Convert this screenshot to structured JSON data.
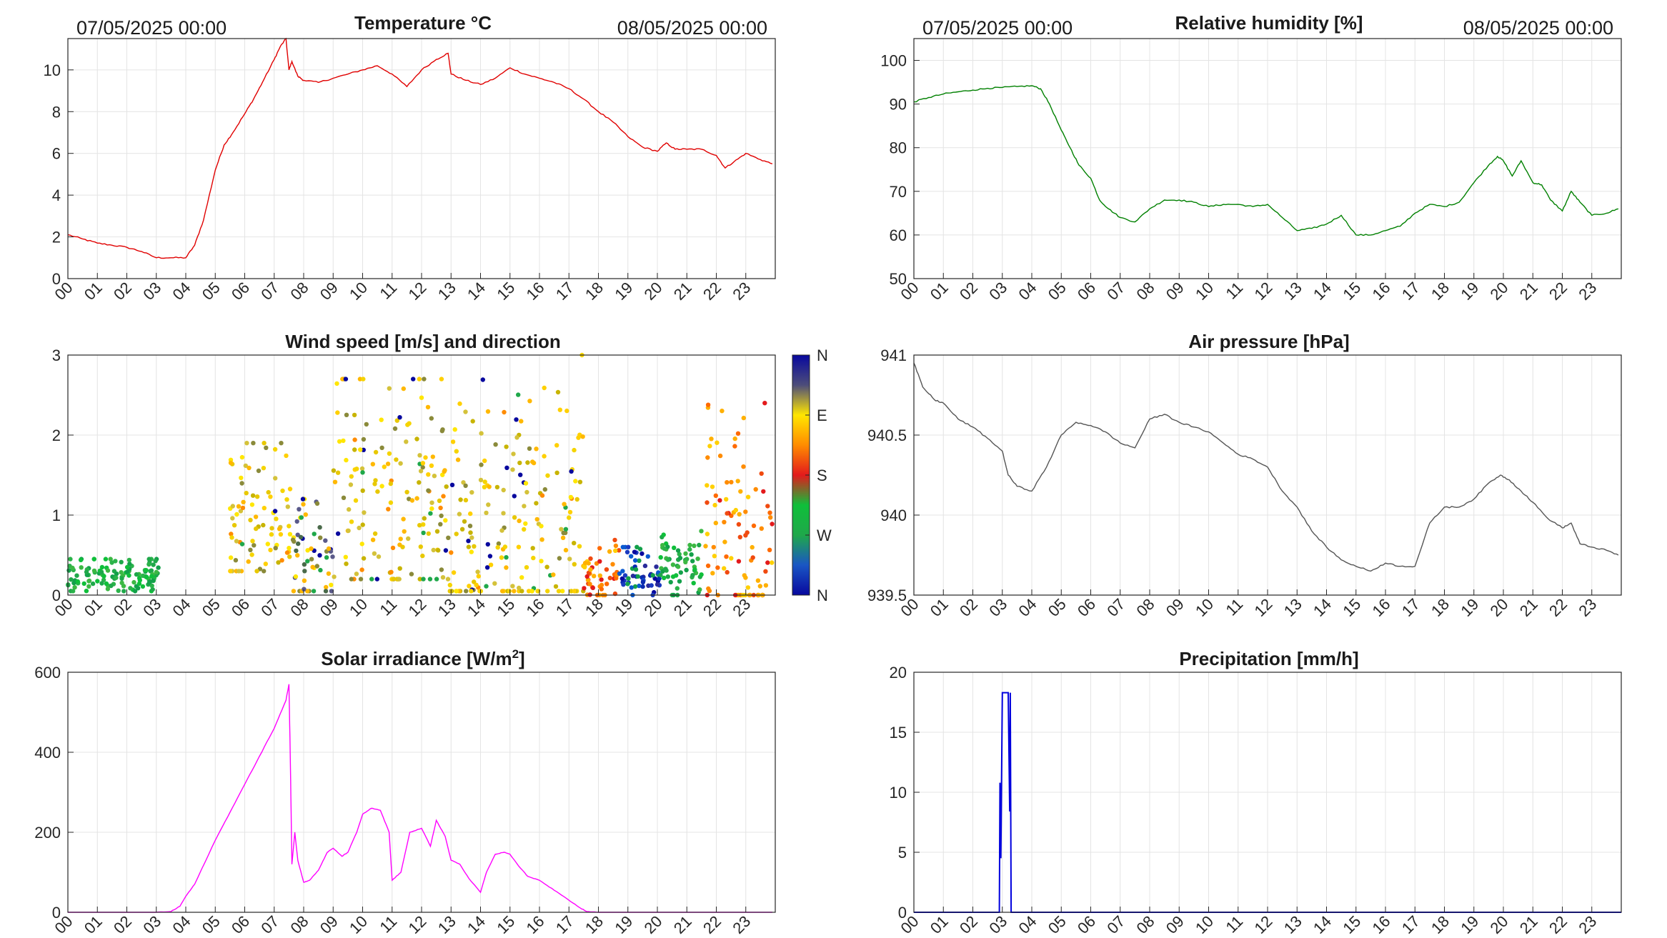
{
  "panels": [
    {
      "id": "temperature",
      "title": "Temperature °C",
      "left_label": "07/05/2025 00:00",
      "right_label": "08/05/2025 00:00"
    },
    {
      "id": "humidity",
      "title": "Relative humidity [%]",
      "left_label": "07/05/2025 00:00",
      "right_label": "08/05/2025 00:00"
    },
    {
      "id": "wind",
      "title": "Wind speed [m/s] and direction"
    },
    {
      "id": "pressure",
      "title": "Air pressure [hPa]"
    },
    {
      "id": "solar",
      "title": "Solar irradiance [W/m",
      "title_sup": "2",
      "title_end": "]"
    },
    {
      "id": "precip",
      "title": "Precipitation [mm/h]"
    }
  ],
  "hour_labels": [
    "00",
    "01",
    "02",
    "03",
    "04",
    "05",
    "06",
    "07",
    "08",
    "09",
    "10",
    "11",
    "12",
    "13",
    "14",
    "15",
    "16",
    "17",
    "18",
    "19",
    "20",
    "21",
    "22",
    "23"
  ],
  "colorbar": {
    "labels": [
      "N",
      "W",
      "S",
      "E",
      "N"
    ],
    "colors": [
      "#08089e",
      "#1a56c4",
      "#1fa84a",
      "#0fbf3a",
      "#e31a1c",
      "#ff8c00",
      "#ffe600",
      "#4d4d7a",
      "#08089e"
    ]
  },
  "chart_data": [
    {
      "id": "temperature",
      "type": "line",
      "title": "Temperature °C",
      "color": "#e00000",
      "xlim": [
        0,
        24
      ],
      "ylim": [
        0,
        11.5
      ],
      "yticks": [
        0,
        2,
        4,
        6,
        8,
        10
      ],
      "grid": true,
      "x": [
        0,
        0.5,
        1,
        1.5,
        2,
        2.5,
        3,
        3.5,
        4,
        4.3,
        4.6,
        5,
        5.3,
        5.6,
        6,
        6.3,
        6.6,
        7,
        7.2,
        7.4,
        7.5,
        7.6,
        7.8,
        8,
        8.5,
        9,
        9.5,
        10,
        10.5,
        11,
        11.5,
        12,
        12.5,
        12.9,
        13,
        13.5,
        14,
        14.5,
        15,
        15.5,
        16,
        16.5,
        17,
        17.5,
        18,
        18.5,
        19,
        19.5,
        20,
        20.3,
        20.6,
        21,
        21.5,
        22,
        22.3,
        22.6,
        23,
        23.5,
        23.9
      ],
      "y": [
        2.1,
        1.9,
        1.7,
        1.6,
        1.5,
        1.3,
        1.0,
        1.0,
        1.0,
        1.6,
        2.8,
        5.2,
        6.4,
        7.0,
        7.9,
        8.6,
        9.4,
        10.5,
        11.1,
        11.5,
        10.0,
        10.4,
        9.7,
        9.5,
        9.4,
        9.6,
        9.8,
        10.0,
        10.2,
        9.8,
        9.2,
        10.0,
        10.5,
        10.8,
        9.8,
        9.5,
        9.3,
        9.6,
        10.1,
        9.8,
        9.6,
        9.4,
        9.1,
        8.6,
        8.0,
        7.5,
        6.8,
        6.3,
        6.1,
        6.5,
        6.2,
        6.2,
        6.2,
        5.9,
        5.3,
        5.6,
        6.0,
        5.7,
        5.5
      ]
    },
    {
      "id": "humidity",
      "type": "line",
      "title": "Relative humidity [%]",
      "color": "#008000",
      "xlim": [
        0,
        24
      ],
      "ylim": [
        50,
        105
      ],
      "yticks": [
        50,
        60,
        70,
        80,
        90,
        100
      ],
      "grid": true,
      "x": [
        0,
        0.5,
        1,
        1.5,
        2,
        2.5,
        3,
        3.5,
        4,
        4.3,
        4.6,
        5,
        5.3,
        5.6,
        6,
        6.3,
        6.6,
        7,
        7.5,
        8,
        8.5,
        9,
        9.5,
        10,
        10.5,
        11,
        11.5,
        12,
        12.5,
        13,
        13.5,
        14,
        14.5,
        15,
        15.5,
        16,
        16.5,
        17,
        17.5,
        18,
        18.5,
        19,
        19.5,
        19.8,
        20,
        20.3,
        20.6,
        21,
        21.3,
        21.6,
        22,
        22.3,
        22.6,
        23,
        23.5,
        23.9
      ],
      "y": [
        90.5,
        91.5,
        92.3,
        92.8,
        93.2,
        93.6,
        93.8,
        94.0,
        94.2,
        93.5,
        90,
        84,
        80,
        76,
        73,
        68,
        66,
        64,
        63,
        66,
        68,
        68,
        67.5,
        66.5,
        67,
        67,
        66.5,
        67,
        64,
        61,
        61.5,
        62.5,
        64.5,
        60,
        60,
        61,
        62,
        65,
        67,
        66.5,
        67.5,
        72,
        76,
        78,
        77,
        73.5,
        77,
        72,
        71.5,
        68,
        65.5,
        70,
        67.5,
        64.5,
        65,
        66
      ]
    },
    {
      "id": "wind",
      "type": "scatter",
      "title": "Wind speed [m/s] and direction",
      "xlim": [
        0,
        24
      ],
      "ylim": [
        0,
        3
      ],
      "yticks": [
        0,
        1,
        2,
        3
      ],
      "grid": true,
      "color_axis": {
        "variable": "direction",
        "labels": [
          "N",
          "W",
          "S",
          "E",
          "N"
        ]
      },
      "clusters": [
        {
          "x_range": [
            0,
            3.1
          ],
          "speed_range": [
            0.05,
            0.45
          ],
          "mean": 0.25,
          "direction": "W"
        },
        {
          "x_range": [
            5.5,
            7.6
          ],
          "speed_range": [
            0.3,
            1.9
          ],
          "mean": 0.95,
          "direction": "E"
        },
        {
          "x_range": [
            7.6,
            9.0
          ],
          "speed_range": [
            0.05,
            1.2
          ],
          "mean": 0.5,
          "direction": "mixed"
        },
        {
          "x_range": [
            9.0,
            12.9
          ],
          "speed_range": [
            0.2,
            2.7
          ],
          "mean": 1.2,
          "direction": "E"
        },
        {
          "x_range": [
            12.9,
            17.5
          ],
          "speed_range": [
            0.05,
            3.0
          ],
          "mean": 0.9,
          "direction": "E"
        },
        {
          "x_range": [
            17.5,
            18.7
          ],
          "speed_range": [
            0,
            0.8
          ],
          "mean": 0.25,
          "direction": "S"
        },
        {
          "x_range": [
            18.7,
            20.1
          ],
          "speed_range": [
            0,
            0.6
          ],
          "mean": 0.3,
          "direction": "N"
        },
        {
          "x_range": [
            20.1,
            21.6
          ],
          "speed_range": [
            0,
            0.8
          ],
          "mean": 0.35,
          "direction": "W"
        },
        {
          "x_range": [
            21.6,
            23.9
          ],
          "speed_range": [
            0,
            2.4
          ],
          "mean": 0.8,
          "direction": "S"
        }
      ]
    },
    {
      "id": "pressure",
      "type": "line",
      "title": "Air pressure [hPa]",
      "color": "#555555",
      "xlim": [
        0,
        24
      ],
      "ylim": [
        939.5,
        941
      ],
      "yticks": [
        939.5,
        940,
        940.5,
        941
      ],
      "grid": true,
      "x": [
        0,
        0.3,
        0.7,
        1,
        1.5,
        2,
        2.5,
        3,
        3.2,
        3.5,
        4,
        4.5,
        5,
        5.5,
        6,
        6.5,
        7,
        7.5,
        8,
        8.5,
        9,
        9.5,
        10,
        10.5,
        11,
        11.5,
        12,
        12.5,
        13,
        13.5,
        14,
        14.5,
        15,
        15.5,
        16,
        16.5,
        17,
        17.5,
        18,
        18.5,
        19,
        19.5,
        19.9,
        20.2,
        20.6,
        21,
        21.5,
        22,
        22.3,
        22.6,
        23,
        23.5,
        23.9
      ],
      "y": [
        940.95,
        940.8,
        940.72,
        940.7,
        940.6,
        940.55,
        940.48,
        940.4,
        940.25,
        940.18,
        940.15,
        940.3,
        940.5,
        940.58,
        940.56,
        940.52,
        940.45,
        940.42,
        940.6,
        940.63,
        940.58,
        940.55,
        940.52,
        940.45,
        940.38,
        940.35,
        940.3,
        940.15,
        940.05,
        939.9,
        939.8,
        939.72,
        939.68,
        939.65,
        939.7,
        939.68,
        939.68,
        939.95,
        940.05,
        940.05,
        940.1,
        940.2,
        940.25,
        940.22,
        940.15,
        940.08,
        939.98,
        939.92,
        939.95,
        939.82,
        939.8,
        939.78,
        939.75
      ]
    },
    {
      "id": "solar",
      "type": "line",
      "title": "Solar irradiance [W/m2]",
      "color": "#ff00ff",
      "xlim": [
        0,
        24
      ],
      "ylim": [
        0,
        600
      ],
      "yticks": [
        0,
        200,
        400,
        600
      ],
      "grid": true,
      "x": [
        0,
        1,
        2,
        3,
        3.5,
        3.8,
        4.0,
        4.3,
        5,
        5.5,
        6,
        6.5,
        7,
        7.4,
        7.5,
        7.55,
        7.6,
        7.7,
        7.8,
        8,
        8.2,
        8.5,
        8.8,
        9,
        9.3,
        9.5,
        9.8,
        10,
        10.3,
        10.6,
        10.9,
        11,
        11.3,
        11.6,
        12,
        12.3,
        12.5,
        12.8,
        13,
        13.3,
        13.6,
        14,
        14.2,
        14.5,
        14.8,
        15,
        15.3,
        15.6,
        16,
        16.5,
        17,
        17.4,
        17.6,
        18,
        19,
        20,
        21,
        22,
        23,
        23.9
      ],
      "y": [
        0,
        0,
        0,
        0,
        2,
        15,
        40,
        70,
        180,
        250,
        320,
        390,
        460,
        530,
        570,
        370,
        120,
        200,
        130,
        75,
        80,
        105,
        150,
        160,
        140,
        150,
        200,
        245,
        260,
        255,
        200,
        80,
        100,
        200,
        210,
        165,
        230,
        190,
        130,
        120,
        85,
        50,
        100,
        145,
        150,
        145,
        115,
        90,
        80,
        55,
        30,
        10,
        2,
        0,
        0,
        0,
        0,
        0,
        0,
        0
      ]
    },
    {
      "id": "precip",
      "type": "line",
      "title": "Precipitation [mm/h]",
      "color": "#0000dd",
      "xlim": [
        0,
        24
      ],
      "ylim": [
        0,
        20
      ],
      "yticks": [
        0,
        5,
        10,
        15,
        20
      ],
      "grid": true,
      "x": [
        0,
        2.9,
        2.92,
        2.95,
        3.0,
        3.1,
        3.2,
        3.25,
        3.27,
        3.3,
        24
      ],
      "y": [
        0,
        0,
        10.8,
        4.5,
        18.3,
        18.3,
        18.3,
        8.4,
        18.3,
        0,
        0
      ]
    }
  ]
}
